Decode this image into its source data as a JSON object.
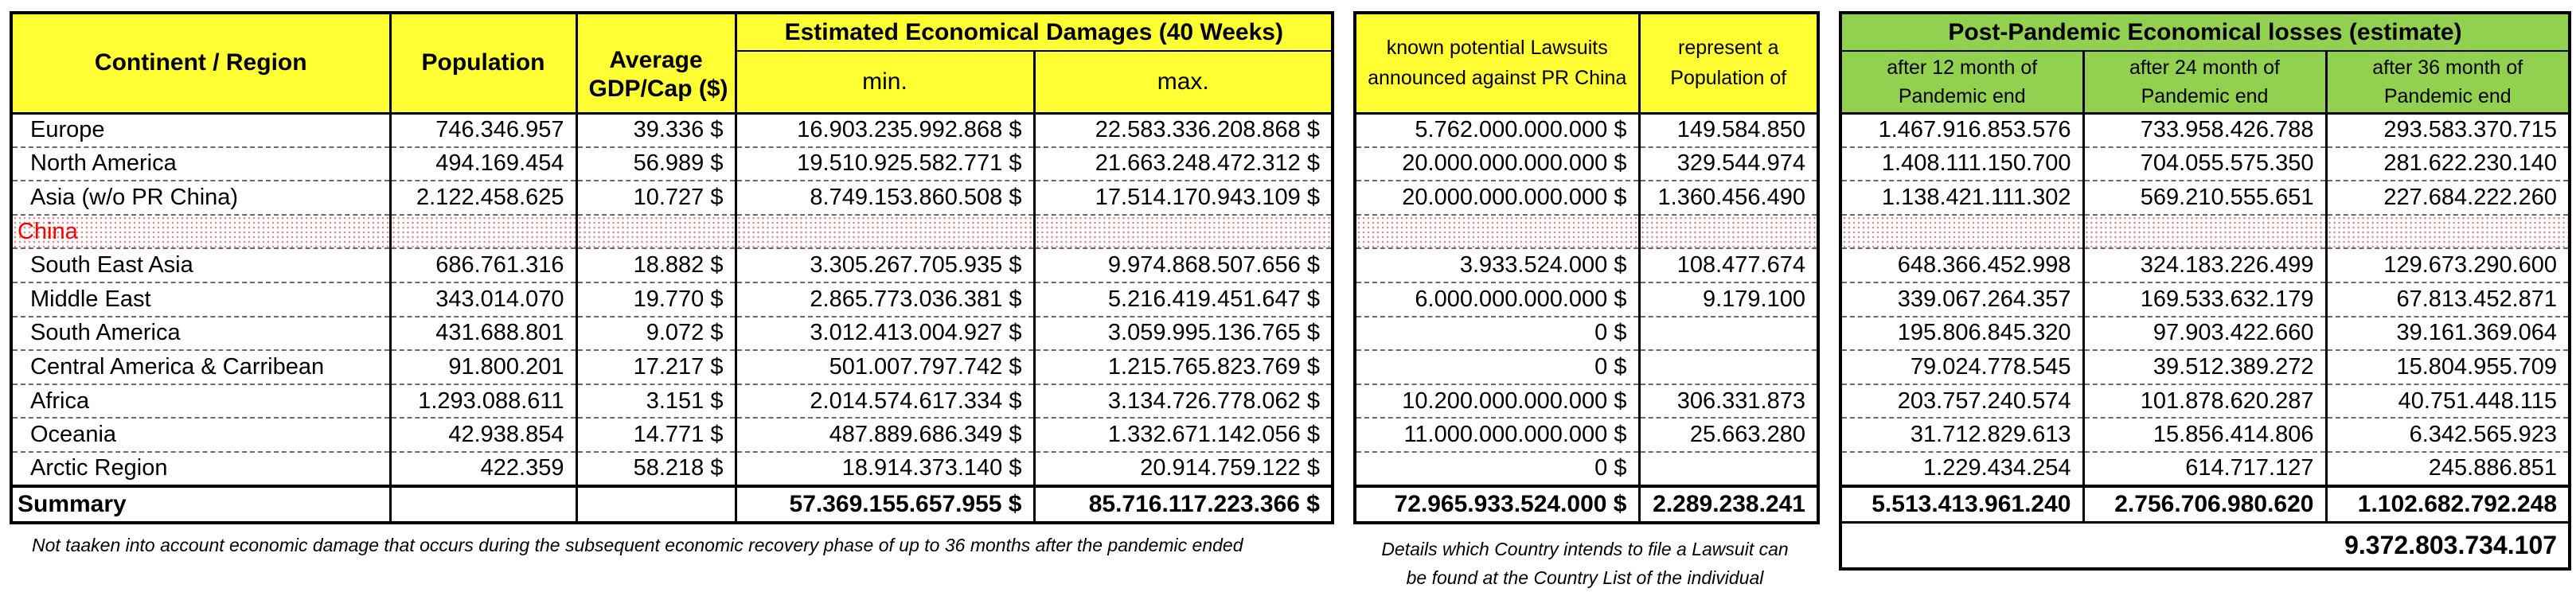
{
  "left": {
    "headers": {
      "continent": "Continent / Region",
      "population": "Population",
      "gdp_line1": "Average",
      "gdp_line2": "GDP/Cap ($)",
      "damages_title": "Estimated Economical Damages (40 Weeks)",
      "min": "min.",
      "max": "max."
    },
    "rows": [
      {
        "region": "Europe",
        "population": "746.346.957",
        "gdp": "39.336 $",
        "min": "16.903.235.992.868 $",
        "max": "22.583.336.208.868 $"
      },
      {
        "region": "North America",
        "population": "494.169.454",
        "gdp": "56.989 $",
        "min": "19.510.925.582.771 $",
        "max": "21.663.248.472.312 $"
      },
      {
        "region": "Asia (w/o PR China)",
        "population": "2.122.458.625",
        "gdp": "10.727 $",
        "min": "8.749.153.860.508 $",
        "max": "17.514.170.943.109 $"
      },
      {
        "region": "China",
        "population": "",
        "gdp": "",
        "min": "",
        "max": ""
      },
      {
        "region": "South East Asia",
        "population": "686.761.316",
        "gdp": "18.882 $",
        "min": "3.305.267.705.935 $",
        "max": "9.974.868.507.656 $"
      },
      {
        "region": "Middle East",
        "population": "343.014.070",
        "gdp": "19.770 $",
        "min": "2.865.773.036.381 $",
        "max": "5.216.419.451.647 $"
      },
      {
        "region": "South America",
        "population": "431.688.801",
        "gdp": "9.072 $",
        "min": "3.012.413.004.927 $",
        "max": "3.059.995.136.765 $"
      },
      {
        "region": "Central America & Carribean",
        "population": "91.800.201",
        "gdp": "17.217 $",
        "min": "501.007.797.742 $",
        "max": "1.215.765.823.769 $"
      },
      {
        "region": "Africa",
        "population": "1.293.088.611",
        "gdp": "3.151 $",
        "min": "2.014.574.617.334 $",
        "max": "3.134.726.778.062 $"
      },
      {
        "region": "Oceania",
        "population": "42.938.854",
        "gdp": "14.771 $",
        "min": "487.889.686.349 $",
        "max": "1.332.671.142.056 $"
      },
      {
        "region": "Arctic Region",
        "population": "422.359",
        "gdp": "58.218 $",
        "min": "18.914.373.140 $",
        "max": "20.914.759.122 $"
      }
    ],
    "summary": {
      "label": "Summary",
      "min": "57.369.155.657.955 $",
      "max": "85.716.117.223.366 $"
    },
    "footnote": "Not taaken into account economic damage that occurs during the subsequent economic recovery phase of up to 36 months after the pandemic ended"
  },
  "middle": {
    "headers": {
      "lawsuits_line1": "known potential Lawsuits",
      "lawsuits_line2": "announced against PR China",
      "represent_line1": "represent a",
      "represent_line2": "Population of"
    },
    "rows": [
      {
        "lawsuits": "5.762.000.000.000 $",
        "population": "149.584.850"
      },
      {
        "lawsuits": "20.000.000.000.000 $",
        "population": "329.544.974"
      },
      {
        "lawsuits": "20.000.000.000.000 $",
        "population": "1.360.456.490"
      },
      {
        "lawsuits": "",
        "population": ""
      },
      {
        "lawsuits": "3.933.524.000 $",
        "population": "108.477.674"
      },
      {
        "lawsuits": "6.000.000.000.000 $",
        "population": "9.179.100"
      },
      {
        "lawsuits": "0 $",
        "population": ""
      },
      {
        "lawsuits": "0 $",
        "population": ""
      },
      {
        "lawsuits": "10.200.000.000.000 $",
        "population": "306.331.873"
      },
      {
        "lawsuits": "11.000.000.000.000 $",
        "population": "25.663.280"
      },
      {
        "lawsuits": "0 $",
        "population": ""
      }
    ],
    "summary": {
      "lawsuits": "72.965.933.524.000 $",
      "population": "2.289.238.241"
    },
    "footnote_line1": "Details which Country intends to file a Lawsuit can",
    "footnote_line2": "be found at the Country List of the individual"
  },
  "right": {
    "headers": {
      "title": "Post-Pandemic Economical losses (estimate)",
      "m12_line1": "after 12 month of",
      "m24_line1": "after 24 month of",
      "m36_line1": "after 36 month of",
      "line2": "Pandemic end"
    },
    "rows": [
      {
        "m12": "1.467.916.853.576",
        "m24": "733.958.426.788",
        "m36": "293.583.370.715"
      },
      {
        "m12": "1.408.111.150.700",
        "m24": "704.055.575.350",
        "m36": "281.622.230.140"
      },
      {
        "m12": "1.138.421.111.302",
        "m24": "569.210.555.651",
        "m36": "227.684.222.260"
      },
      {
        "m12": "",
        "m24": "",
        "m36": ""
      },
      {
        "m12": "648.366.452.998",
        "m24": "324.183.226.499",
        "m36": "129.673.290.600"
      },
      {
        "m12": "339.067.264.357",
        "m24": "169.533.632.179",
        "m36": "67.813.452.871"
      },
      {
        "m12": "195.806.845.320",
        "m24": "97.903.422.660",
        "m36": "39.161.369.064"
      },
      {
        "m12": "79.024.778.545",
        "m24": "39.512.389.272",
        "m36": "15.804.955.709"
      },
      {
        "m12": "203.757.240.574",
        "m24": "101.878.620.287",
        "m36": "40.751.448.115"
      },
      {
        "m12": "31.712.829.613",
        "m24": "15.856.414.806",
        "m36": "6.342.565.923"
      },
      {
        "m12": "1.229.434.254",
        "m24": "614.717.127",
        "m36": "245.886.851"
      }
    ],
    "summary": {
      "m12": "5.513.413.961.240",
      "m24": "2.756.706.980.620",
      "m36": "1.102.682.792.248"
    },
    "grand_total": "9.372.803.734.107"
  }
}
